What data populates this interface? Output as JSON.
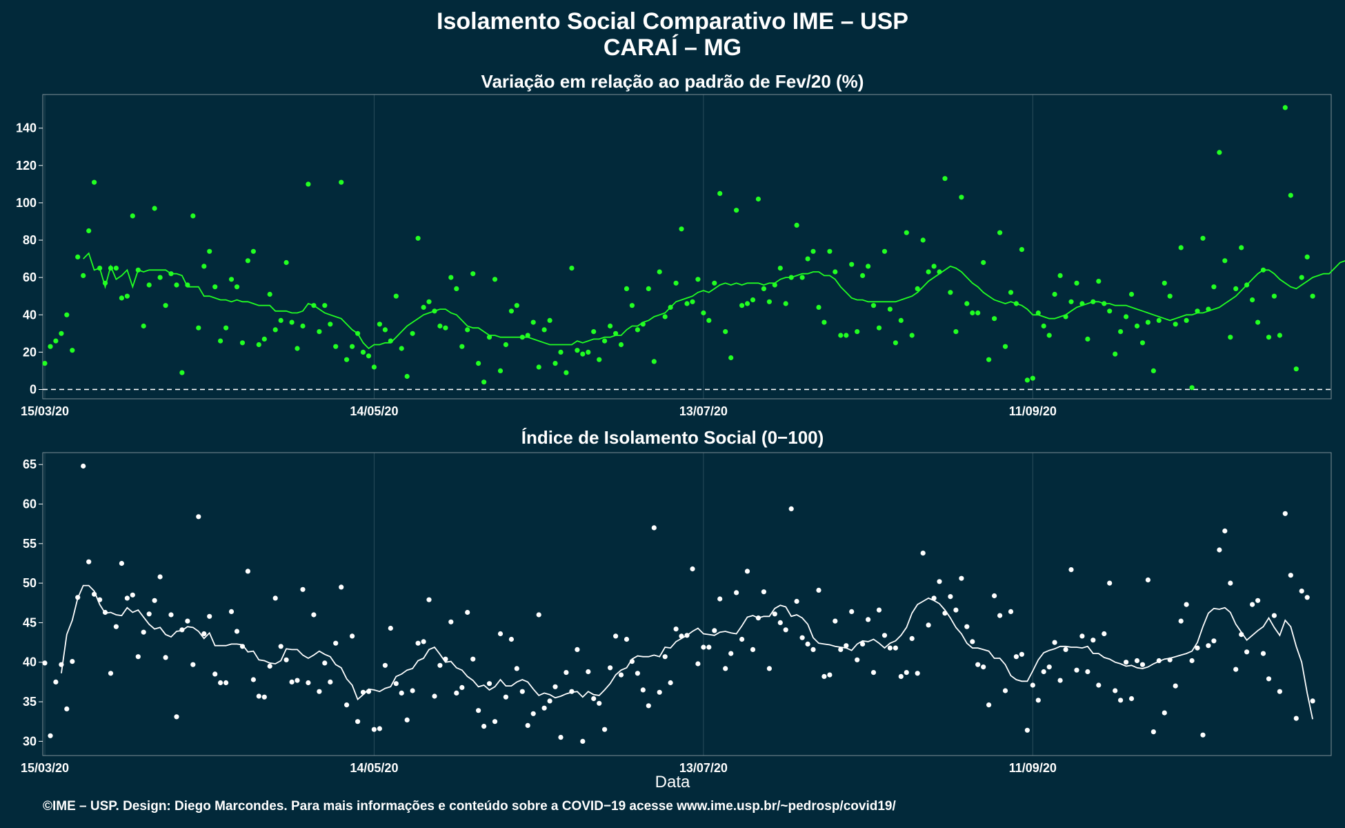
{
  "header": {
    "title_line1": "Isolamento Social Comparativo IME – USP",
    "title_line2": "CARAÍ – MG"
  },
  "footer": {
    "credit": "©IME – USP. Design: Diego Marcondes. Para mais informações e conteúdo sobre a COVID−19 acesse www.ime.usp.br/~pedrosp/covid19/"
  },
  "colors": {
    "background": "#02293a",
    "grid": "#2a4c5a",
    "top_series": "#22ff22",
    "bottom_series": "#ffffff",
    "axis_text": "#ffffff"
  },
  "chart_data": [
    {
      "type": "scatter",
      "title": "Variação em relação ao padrão de Fev/20 (%)",
      "xlabel": "",
      "ylabel": "",
      "x_ticks": [
        "15/03/20",
        "14/05/20",
        "13/07/20",
        "11/09/20"
      ],
      "y_ticks": [
        0,
        20,
        40,
        60,
        80,
        100,
        120,
        140
      ],
      "ylim": [
        -5,
        158
      ],
      "reference_line": 0,
      "x_start": "15/03/20",
      "n_days": 235,
      "series": [
        {
          "values": [
            14,
            23,
            26,
            30,
            40,
            21,
            71,
            61,
            85,
            111,
            65,
            57,
            65,
            65,
            49,
            50,
            93,
            64,
            34,
            56,
            97,
            60,
            45,
            62,
            56,
            9,
            56,
            93,
            33,
            66,
            74,
            55,
            26,
            33,
            59,
            55,
            25,
            69,
            74,
            24,
            27,
            51,
            32,
            37,
            68,
            36,
            22,
            34,
            110,
            45,
            31,
            45,
            35,
            23,
            111,
            16,
            23,
            30,
            20,
            18,
            12,
            35,
            32,
            26,
            50,
            22,
            7,
            30,
            81,
            44,
            47,
            42,
            34,
            33,
            60,
            54,
            23,
            32,
            62,
            14,
            4,
            28,
            59,
            10,
            24,
            42,
            45,
            28,
            29,
            36,
            12,
            32,
            37,
            14,
            20,
            9,
            65,
            21,
            19,
            20,
            31,
            16,
            26,
            34,
            30,
            24,
            54,
            45,
            32,
            35,
            54,
            15,
            63,
            39,
            44,
            57,
            86,
            46,
            47,
            59,
            41,
            37,
            57,
            105,
            31,
            17,
            96,
            45,
            46,
            48,
            102,
            54,
            47,
            56,
            65,
            46,
            60,
            88,
            60,
            70,
            74,
            44,
            36,
            74,
            63,
            29,
            29,
            67,
            31,
            61,
            66,
            45,
            33,
            74,
            43,
            25,
            37,
            84,
            29,
            54,
            80,
            63,
            66,
            63,
            113,
            52,
            31,
            103,
            46,
            41,
            41,
            68,
            16,
            38,
            84,
            23,
            52,
            46,
            75,
            5,
            6,
            41,
            34,
            29,
            51,
            61,
            39,
            47,
            57,
            46,
            27,
            47,
            58,
            46,
            42,
            19,
            31,
            39,
            51,
            34,
            25,
            36,
            10,
            37,
            57,
            50,
            35,
            76,
            37,
            1,
            42,
            81,
            43,
            55,
            127,
            69,
            28,
            54,
            76,
            56,
            48,
            36,
            64,
            28,
            50,
            29,
            151,
            104,
            11,
            60,
            71,
            50
          ]
        },
        {
          "name": "",
          "values": [
            null,
            null,
            null,
            null,
            null,
            null,
            null,
            70,
            73,
            64,
            65,
            55,
            66,
            59,
            61,
            64,
            55,
            64,
            63,
            64,
            64,
            64,
            64,
            62,
            62,
            61,
            55,
            55,
            55,
            50,
            50,
            49,
            48,
            48,
            47,
            48,
            47,
            47,
            46,
            45,
            45,
            45,
            42,
            42,
            42,
            41,
            41,
            42,
            46,
            45,
            43,
            41,
            40,
            39,
            38,
            35,
            32,
            30,
            25,
            22,
            24,
            24,
            25,
            25,
            28,
            31,
            34,
            36,
            38,
            40,
            41,
            42,
            43,
            43,
            41,
            40,
            37,
            34,
            33,
            33,
            31,
            29,
            29,
            28,
            28,
            28,
            28,
            28,
            28,
            27,
            26,
            25,
            24,
            24,
            24,
            24,
            24,
            26,
            25,
            26,
            27,
            27,
            28,
            28,
            29,
            29,
            32,
            34,
            34,
            36,
            37,
            39,
            40,
            41,
            44,
            47,
            48,
            49,
            50,
            52,
            53,
            52,
            54,
            56,
            57,
            56,
            57,
            56,
            57,
            57,
            57,
            56,
            57,
            57,
            59,
            60,
            60,
            61,
            62,
            62,
            63,
            63,
            61,
            61,
            59,
            55,
            52,
            49,
            48,
            48,
            47,
            47,
            47,
            47,
            47,
            47,
            48,
            49,
            50,
            52,
            55,
            58,
            60,
            62,
            64,
            66,
            65,
            63,
            60,
            57,
            55,
            52,
            50,
            48,
            47,
            46,
            47,
            46,
            45,
            43,
            40,
            40,
            39,
            38,
            38,
            39,
            40,
            42,
            44,
            45,
            46,
            47,
            47,
            46,
            46,
            45,
            45,
            45,
            44,
            43,
            42,
            41,
            40,
            39,
            38,
            37,
            38,
            39,
            40,
            40,
            41,
            41,
            42,
            43,
            44,
            46,
            48,
            50,
            53,
            56,
            59,
            62,
            64,
            64,
            62,
            59,
            57,
            55,
            54,
            56,
            58,
            60,
            61,
            62,
            62,
            65,
            68,
            69
          ]
        }
      ]
    },
    {
      "type": "scatter",
      "title": "Índice de Isolamento Social (0−100)",
      "xlabel": "Data",
      "ylabel": "",
      "x_ticks": [
        "15/03/20",
        "14/05/20",
        "13/07/20",
        "11/09/20"
      ],
      "y_ticks": [
        30,
        35,
        40,
        45,
        50,
        55,
        60,
        65
      ],
      "ylim": [
        28.2,
        66.5
      ],
      "x_start": "15/03/20",
      "n_days": 235,
      "series": [
        {
          "values": [
            39.9,
            30.7,
            37.5,
            39.7,
            34.1,
            40.1,
            48.2,
            64.8,
            52.7,
            48.6,
            47.9,
            46.3,
            38.6,
            44.5,
            52.5,
            48.1,
            48.5,
            40.7,
            43.8,
            46.1,
            47.8,
            50.8,
            40.6,
            46.0,
            33.1,
            44.1,
            45.2,
            39.7,
            58.4,
            43.6,
            45.8,
            38.5,
            37.4,
            37.4,
            46.4,
            43.9,
            42.0,
            51.5,
            37.8,
            35.7,
            35.6,
            39.5,
            48.1,
            42.0,
            40.3,
            37.5,
            37.7,
            49.2,
            37.4,
            46.0,
            36.3,
            39.9,
            37.5,
            42.4,
            49.5,
            34.6,
            43.3,
            32.5,
            36.2,
            36.3,
            31.5,
            31.6,
            39.6,
            44.3,
            37.3,
            36.1,
            32.7,
            36.4,
            42.4,
            42.6,
            47.9,
            35.7,
            39.6,
            40.4,
            45.1,
            36.1,
            36.8,
            46.3,
            40.4,
            33.9,
            31.9,
            37.3,
            32.5,
            43.6,
            35.6,
            42.9,
            39.2,
            36.3,
            32.0,
            33.5,
            46.0,
            34.2,
            35.1,
            36.9,
            30.5,
            38.7,
            36.3,
            41.6,
            30.0,
            38.8,
            35.4,
            34.8,
            31.5,
            39.3,
            43.3,
            38.4,
            42.9,
            40.1,
            38.6,
            36.5,
            34.5,
            57.0,
            36.2,
            40.7,
            37.4,
            44.2,
            43.3,
            43.4,
            51.8,
            39.8,
            41.9,
            41.9,
            44.0,
            48.0,
            39.2,
            41.1,
            48.8,
            42.9,
            51.5,
            41.6,
            45.6,
            48.9,
            39.2,
            46.1,
            45.0,
            44.1,
            59.4,
            47.7,
            43.1,
            42.3,
            41.6,
            49.1,
            38.2,
            38.4,
            45.2,
            41.6,
            42.1,
            46.4,
            40.3,
            42.3,
            45.4,
            38.7,
            46.6,
            43.4,
            41.8,
            41.8,
            38.2,
            38.7,
            43.0,
            38.6,
            53.8,
            44.7,
            48.1,
            50.2,
            46.2,
            48.3,
            46.6,
            50.6,
            44.5,
            42.6,
            39.7,
            39.4,
            34.6,
            48.4,
            45.9,
            36.4,
            46.4,
            40.7,
            41.0,
            31.4,
            37.1,
            35.2,
            38.8,
            39.4,
            42.5,
            37.7,
            41.6,
            51.7,
            39.0,
            43.3,
            38.8,
            42.8,
            37.1,
            43.6,
            50.0,
            36.4,
            35.2,
            40.0,
            35.4,
            40.2,
            39.7,
            50.4,
            31.2,
            40.2,
            33.6,
            40.3,
            37.0,
            45.2,
            47.3,
            40.2,
            41.8,
            30.8,
            42.1,
            42.7,
            54.2,
            56.6,
            50.0,
            39.1,
            43.5,
            41.3,
            47.3,
            47.8,
            41.1,
            37.9,
            45.9,
            36.3,
            58.8,
            51.0,
            32.9,
            49.0,
            48.2,
            35.1
          ]
        },
        {
          "name": "",
          "values": [
            null,
            null,
            null,
            38.6,
            43.5,
            45.3,
            48.1,
            49.7,
            49.7,
            49.0,
            47.3,
            46.2,
            46.3,
            46.0,
            45.9,
            46.9,
            46.3,
            46.6,
            45.7,
            44.8,
            44.2,
            44.4,
            43.5,
            43.2,
            43.9,
            44.0,
            44.5,
            44.4,
            43.9,
            43.0,
            43.7,
            42.1,
            42.1,
            42.1,
            42.3,
            42.3,
            42.2,
            41.3,
            41.4,
            40.3,
            40.2,
            39.9,
            39.8,
            40.2,
            41.7,
            41.6,
            41.6,
            40.9,
            40.5,
            40.9,
            41.4,
            41.0,
            40.7,
            39.7,
            39.3,
            37.9,
            37.1,
            35.3,
            35.9,
            36.6,
            36.5,
            36.3,
            36.7,
            36.9,
            38.2,
            38.5,
            39.0,
            39.2,
            40.2,
            40.5,
            41.6,
            41.9,
            41.0,
            40.0,
            40.1,
            39.3,
            39.0,
            38.2,
            37.7,
            36.9,
            37.1,
            36.5,
            36.9,
            37.8,
            37.0,
            37.0,
            37.5,
            37.8,
            37.5,
            36.6,
            35.8,
            36.1,
            35.9,
            35.5,
            35.7,
            36.0,
            36.2,
            36.3,
            35.6,
            36.3,
            35.9,
            35.8,
            36.5,
            37.3,
            38.4,
            39.0,
            39.3,
            40.4,
            40.8,
            40.7,
            40.7,
            40.9,
            40.7,
            41.9,
            41.8,
            42.6,
            43.0,
            43.4,
            43.9,
            44.3,
            43.6,
            43.5,
            43.4,
            43.8,
            43.9,
            43.7,
            43.6,
            44.6,
            45.7,
            45.9,
            45.6,
            45.8,
            45.8,
            46.8,
            47.2,
            47.0,
            45.8,
            46.0,
            45.6,
            44.8,
            43.1,
            42.4,
            42.3,
            42.2,
            42.0,
            41.9,
            41.8,
            41.5,
            42.3,
            42.7,
            42.6,
            42.9,
            42.4,
            41.8,
            42.4,
            42.7,
            43.4,
            44.4,
            46.2,
            47.3,
            47.7,
            48.1,
            47.8,
            47.4,
            46.6,
            45.6,
            44.4,
            43.6,
            42.4,
            41.8,
            41.8,
            41.6,
            41.4,
            40.5,
            40.5,
            39.7,
            38.3,
            37.8,
            37.6,
            37.6,
            38.9,
            40.3,
            41.2,
            41.5,
            41.7,
            42.0,
            42.0,
            41.9,
            41.9,
            41.8,
            42.0,
            41.1,
            41.1,
            40.6,
            40.4,
            40.0,
            39.8,
            39.5,
            39.6,
            39.3,
            39.2,
            39.4,
            39.8,
            40.1,
            40.4,
            40.5,
            40.7,
            40.9,
            41.1,
            41.4,
            42.5,
            44.5,
            46.2,
            46.8,
            46.7,
            46.9,
            46.3,
            44.8,
            43.8,
            42.8,
            43.4,
            44.0,
            44.5,
            45.6,
            44.4,
            43.4,
            45.3,
            44.5,
            42.0,
            40.0,
            36.1,
            32.8
          ]
        }
      ]
    }
  ]
}
